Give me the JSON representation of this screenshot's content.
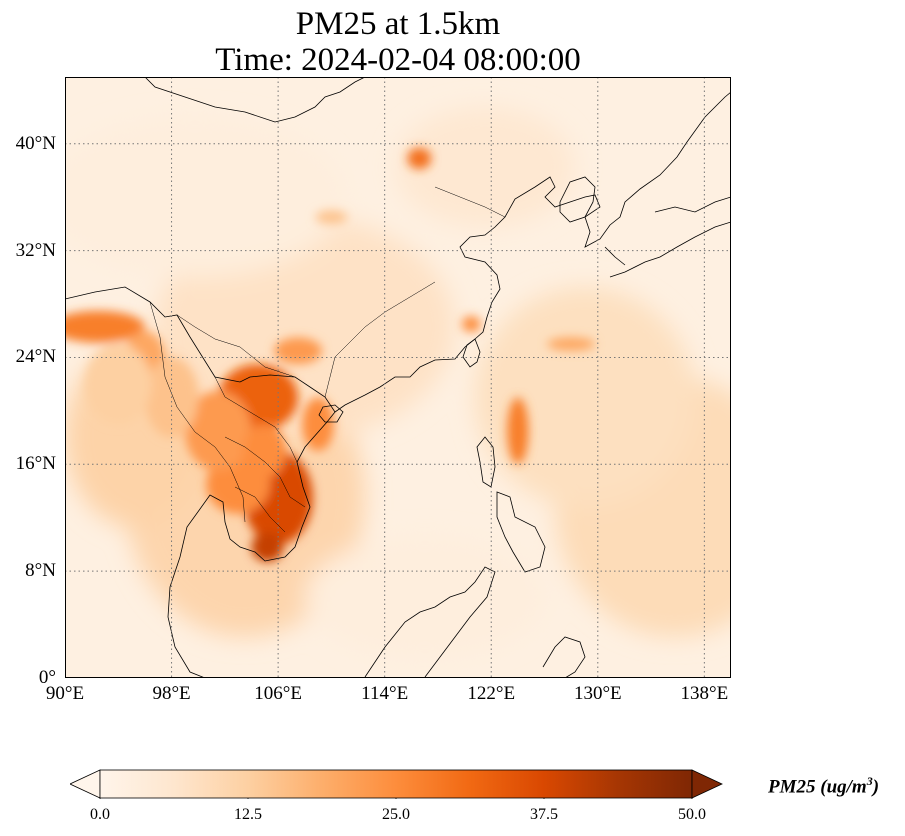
{
  "title_line1": "PM25 at 1.5km",
  "title_line2": "Time: 2024-02-04 08:00:00",
  "map": {
    "extent": {
      "lon_min": 90,
      "lon_max": 140,
      "lat_min": 0,
      "lat_max": 45
    },
    "gridlines": "dotted",
    "lat_ticks": [
      {
        "value": 40,
        "label": "40°N"
      },
      {
        "value": 32,
        "label": "32°N"
      },
      {
        "value": 24,
        "label": "24°N"
      },
      {
        "value": 16,
        "label": "16°N"
      },
      {
        "value": 8,
        "label": "8°N"
      },
      {
        "value": 0,
        "label": "0°"
      }
    ],
    "lon_ticks": [
      {
        "value": 90,
        "label": "90°E"
      },
      {
        "value": 98,
        "label": "98°E"
      },
      {
        "value": 106,
        "label": "106°E"
      },
      {
        "value": 114,
        "label": "114°E"
      },
      {
        "value": 122,
        "label": "122°E"
      },
      {
        "value": 130,
        "label": "130°E"
      },
      {
        "value": 138,
        "label": "138°E"
      }
    ],
    "hotspots": [
      {
        "lon": 106.0,
        "lat": 13.5,
        "rx": 2.6,
        "ry": 3.5,
        "level": 0.75
      },
      {
        "lon": 104.5,
        "lat": 21.0,
        "rx": 3.0,
        "ry": 2.5,
        "level": 0.65
      },
      {
        "lon": 105.2,
        "lat": 9.8,
        "rx": 1.2,
        "ry": 1.1,
        "level": 0.8
      },
      {
        "lon": 103.0,
        "lat": 14.5,
        "rx": 2.4,
        "ry": 2.2,
        "level": 0.5
      },
      {
        "lon": 101.5,
        "lat": 18.5,
        "rx": 2.5,
        "ry": 3.0,
        "level": 0.45
      },
      {
        "lon": 105.0,
        "lat": 17.0,
        "rx": 1.6,
        "ry": 2.0,
        "level": 0.5
      },
      {
        "lon": 92.5,
        "lat": 26.3,
        "rx": 3.5,
        "ry": 1.2,
        "level": 0.55
      },
      {
        "lon": 96.0,
        "lat": 24.0,
        "rx": 1.5,
        "ry": 2.0,
        "level": 0.4
      },
      {
        "lon": 116.6,
        "lat": 38.9,
        "rx": 0.9,
        "ry": 0.8,
        "level": 0.6
      },
      {
        "lon": 107.5,
        "lat": 24.5,
        "rx": 1.8,
        "ry": 1.0,
        "level": 0.45
      },
      {
        "lon": 120.5,
        "lat": 26.5,
        "rx": 0.7,
        "ry": 0.6,
        "level": 0.5
      },
      {
        "lon": 124.0,
        "lat": 18.5,
        "rx": 0.8,
        "ry": 2.5,
        "level": 0.55
      },
      {
        "lon": 128.0,
        "lat": 25.0,
        "rx": 1.8,
        "ry": 0.5,
        "level": 0.4
      },
      {
        "lon": 109.0,
        "lat": 19.0,
        "rx": 1.2,
        "ry": 2.0,
        "level": 0.5
      },
      {
        "lon": 110.0,
        "lat": 34.5,
        "rx": 1.2,
        "ry": 0.5,
        "level": 0.3
      },
      {
        "lon": 98.0,
        "lat": 21.0,
        "rx": 2.0,
        "ry": 3.0,
        "level": 0.3
      },
      {
        "lon": 94.0,
        "lat": 22.0,
        "rx": 2.5,
        "ry": 3.0,
        "level": 0.25
      }
    ]
  },
  "colorbar": {
    "min": 0,
    "max": 50,
    "ticks": [
      {
        "value": 0,
        "label": "0.0"
      },
      {
        "value": 12.5,
        "label": "12.5"
      },
      {
        "value": 25,
        "label": "25.0"
      },
      {
        "value": 37.5,
        "label": "37.5"
      },
      {
        "value": 50,
        "label": "50.0"
      }
    ],
    "label": "PM25 (ug/m",
    "label_exponent": "3",
    "label_close": ")",
    "colors": [
      "#fff5eb",
      "#fee6ce",
      "#fdd0a2",
      "#fdae6b",
      "#fd8d3c",
      "#f16913",
      "#d94801",
      "#a63603",
      "#7f2704"
    ]
  }
}
